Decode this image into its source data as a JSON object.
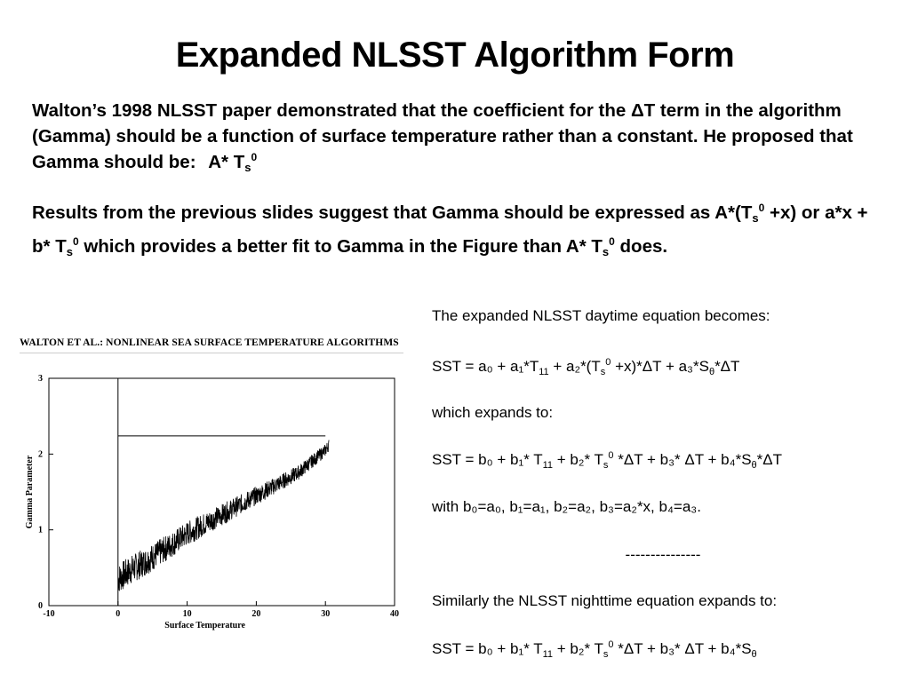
{
  "slide": {
    "title": "Expanded NLSST Algorithm Form",
    "intro": {
      "p1_text": "Walton’s 1998 NLSST paper demonstrated that the coefficient for the ΔT term in the algorithm (Gamma) should be a function of surface temperature rather than a constant. He proposed that Gamma should be: ",
      "p1_expr": "A* T",
      "p2_a": "Results from the previous slides suggest that Gamma should be expressed as A*(T",
      "p2_b": " +x) or a*x + b* T",
      "p2_c": " which provides a better fit to Gamma in the Figure than A* T",
      "p2_d": " does.",
      "sub_s": "s",
      "sup_0": "0"
    }
  },
  "figure": {
    "caption": "WALTON ET AL.: NONLINEAR SEA SURFACE TEMPERATURE ALGORITHMS"
  },
  "chart_data": {
    "type": "line",
    "title": "",
    "xlabel": "Surface Temperature",
    "ylabel": "Gamma Parameter",
    "xlim": [
      -10,
      40
    ],
    "ylim": [
      0,
      3
    ],
    "x_ticks": [
      "-10",
      "0",
      "10",
      "20",
      "30",
      "40"
    ],
    "y_ticks": [
      "0",
      "1",
      "2",
      "3"
    ],
    "grid": false,
    "legend": "none",
    "series": [
      {
        "x": [
          0,
          2,
          4,
          6,
          8,
          10,
          12,
          14,
          16,
          18,
          20,
          22,
          24,
          26,
          28,
          30,
          30.5
        ],
        "y": [
          0.35,
          0.48,
          0.58,
          0.7,
          0.82,
          0.95,
          1.05,
          1.15,
          1.25,
          1.35,
          1.45,
          1.55,
          1.65,
          1.75,
          1.9,
          2.05,
          2.12
        ]
      }
    ],
    "reference_lines": [
      {
        "type": "vertical",
        "x": 0,
        "y_from": 0,
        "y_to": 3
      },
      {
        "type": "horizontal",
        "y": 2.24,
        "x_from": 0,
        "x_to": 30
      }
    ]
  },
  "equations": {
    "line1": "The expanded NLSST daytime equation becomes:",
    "eq1": [
      "SST = a₀ + a₁*T",
      "11",
      " + a₂*(T",
      "s",
      "0",
      " +x)*ΔT + a₃*S",
      "θ",
      "*ΔT"
    ],
    "line2": "which expands to:",
    "eq2": [
      "SST = b₀ + b₁* T",
      "11",
      "  + b₂* T",
      "s",
      "0",
      " *ΔT + b₃* ΔT + b₄*S",
      "θ",
      "*ΔT"
    ],
    "line3": "with b₀=a₀, b₁=a₁,  b₂=a₂,  b₃=a₂*x, b₄=a₃.",
    "divider": "---------------",
    "line4": "Similarly the NLSST nighttime equation expands to:",
    "eq3": [
      "SST = b₀ + b₁* T",
      "11",
      "  + b₂* T",
      "s",
      "0",
      " *ΔT + b₃* ΔT + b₄*S",
      "θ"
    ]
  }
}
